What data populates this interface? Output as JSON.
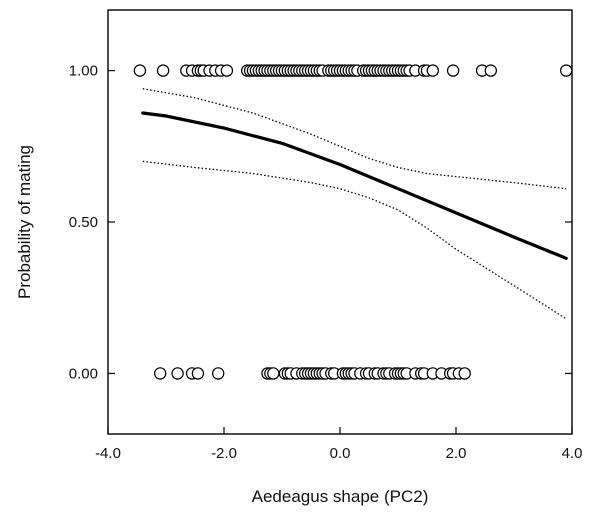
{
  "chart_data": {
    "type": "scatter",
    "title": "",
    "xlabel": "Aedeagus shape (PC2)",
    "ylabel": "Probability of mating",
    "xlim": [
      -4.0,
      4.0
    ],
    "ylim": [
      -0.2,
      1.2
    ],
    "x_ticks": [
      "-4.0",
      "-2.0",
      "0.0",
      "2.0",
      "4.0"
    ],
    "y_ticks": [
      "0.00",
      "0.50",
      "1.00"
    ],
    "grid": false,
    "legend": "none",
    "series": [
      {
        "kind": "points",
        "y": 1.0,
        "x": [
          -3.45,
          -3.05,
          -2.65,
          -2.55,
          -2.45,
          -2.4,
          -2.35,
          -2.25,
          -2.15,
          -2.05,
          -1.95,
          -1.6,
          -1.55,
          -1.5,
          -1.45,
          -1.4,
          -1.35,
          -1.3,
          -1.25,
          -1.2,
          -1.15,
          -1.1,
          -1.05,
          -1.0,
          -0.95,
          -0.9,
          -0.85,
          -0.8,
          -0.75,
          -0.7,
          -0.65,
          -0.6,
          -0.55,
          -0.5,
          -0.45,
          -0.4,
          -0.35,
          -0.3,
          -0.2,
          -0.15,
          -0.1,
          -0.05,
          0.0,
          0.05,
          0.1,
          0.15,
          0.2,
          0.25,
          0.3,
          0.4,
          0.45,
          0.5,
          0.55,
          0.6,
          0.65,
          0.7,
          0.75,
          0.8,
          0.85,
          0.9,
          0.95,
          1.0,
          1.05,
          1.1,
          1.15,
          1.2,
          1.3,
          1.45,
          1.5,
          1.6,
          1.95,
          2.45,
          2.6,
          3.9
        ]
      },
      {
        "kind": "points",
        "y": 0.0,
        "x": [
          -3.1,
          -2.8,
          -2.55,
          -2.45,
          -2.1,
          -1.25,
          -1.2,
          -1.15,
          -0.95,
          -0.9,
          -0.85,
          -0.75,
          -0.65,
          -0.6,
          -0.55,
          -0.5,
          -0.45,
          -0.4,
          -0.35,
          -0.3,
          -0.25,
          -0.15,
          -0.1,
          0.05,
          0.1,
          0.15,
          0.2,
          0.25,
          0.35,
          0.45,
          0.5,
          0.6,
          0.65,
          0.75,
          0.8,
          0.85,
          0.95,
          1.0,
          1.05,
          1.1,
          1.15,
          1.3,
          1.4,
          1.45,
          1.6,
          1.75,
          1.9,
          1.95,
          2.05,
          2.15
        ]
      },
      {
        "kind": "fit",
        "style": "solid-thick",
        "x": [
          -3.4,
          -3.0,
          -2.0,
          -1.0,
          0.0,
          1.0,
          2.0,
          3.0,
          3.9
        ],
        "y": [
          0.86,
          0.85,
          0.81,
          0.76,
          0.69,
          0.61,
          0.53,
          0.45,
          0.38
        ]
      },
      {
        "kind": "ci-upper",
        "style": "dotted",
        "x": [
          -3.4,
          -2.5,
          -1.5,
          -0.5,
          0.0,
          0.5,
          1.0,
          1.5,
          2.0,
          3.0,
          3.9
        ],
        "y": [
          0.94,
          0.91,
          0.86,
          0.79,
          0.75,
          0.71,
          0.68,
          0.66,
          0.65,
          0.63,
          0.61
        ]
      },
      {
        "kind": "ci-lower",
        "style": "dotted",
        "x": [
          -3.4,
          -2.5,
          -1.5,
          -0.5,
          0.0,
          0.5,
          1.0,
          1.5,
          2.0,
          3.0,
          3.9
        ],
        "y": [
          0.7,
          0.68,
          0.66,
          0.63,
          0.61,
          0.58,
          0.54,
          0.48,
          0.41,
          0.29,
          0.18
        ]
      }
    ]
  }
}
